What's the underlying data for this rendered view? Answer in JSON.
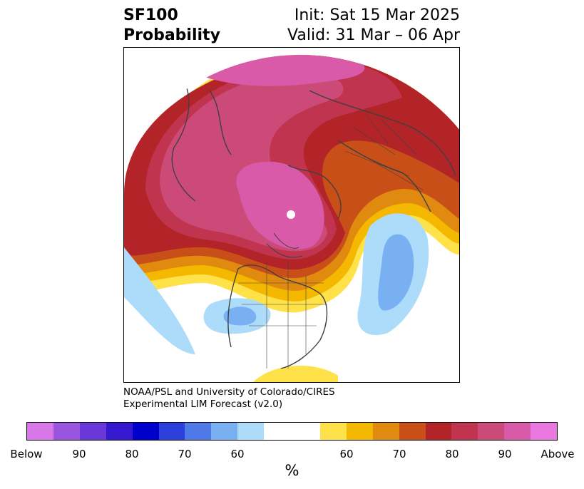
{
  "header": {
    "title_line1": "SF100",
    "title_line2": "Probability",
    "init": "Init: Sat 15 Mar 2025",
    "valid": "Valid: 31 Mar – 06 Apr"
  },
  "credit": {
    "line1": "NOAA/PSL and University of Colorado/CIRES",
    "line2": "Experimental LIM Forecast (v2.0)"
  },
  "colorbar": {
    "below_colors": [
      "#d878e8",
      "#9a55e0",
      "#6a38d8",
      "#3518d0",
      "#0000cc",
      "#2a3fdc",
      "#4f78e8",
      "#78b0f2",
      "#acdcfa"
    ],
    "neutral_color": "#ffffff",
    "above_colors": [
      "#ffe24a",
      "#f4b800",
      "#e08a10",
      "#c85018",
      "#b22428",
      "#c03450",
      "#cc4a78",
      "#d85aa8",
      "#e878e0"
    ],
    "tick_labels": [
      "Below",
      "90",
      "80",
      "70",
      "60",
      "60",
      "70",
      "80",
      "90",
      "Above"
    ],
    "unit": "%"
  }
}
